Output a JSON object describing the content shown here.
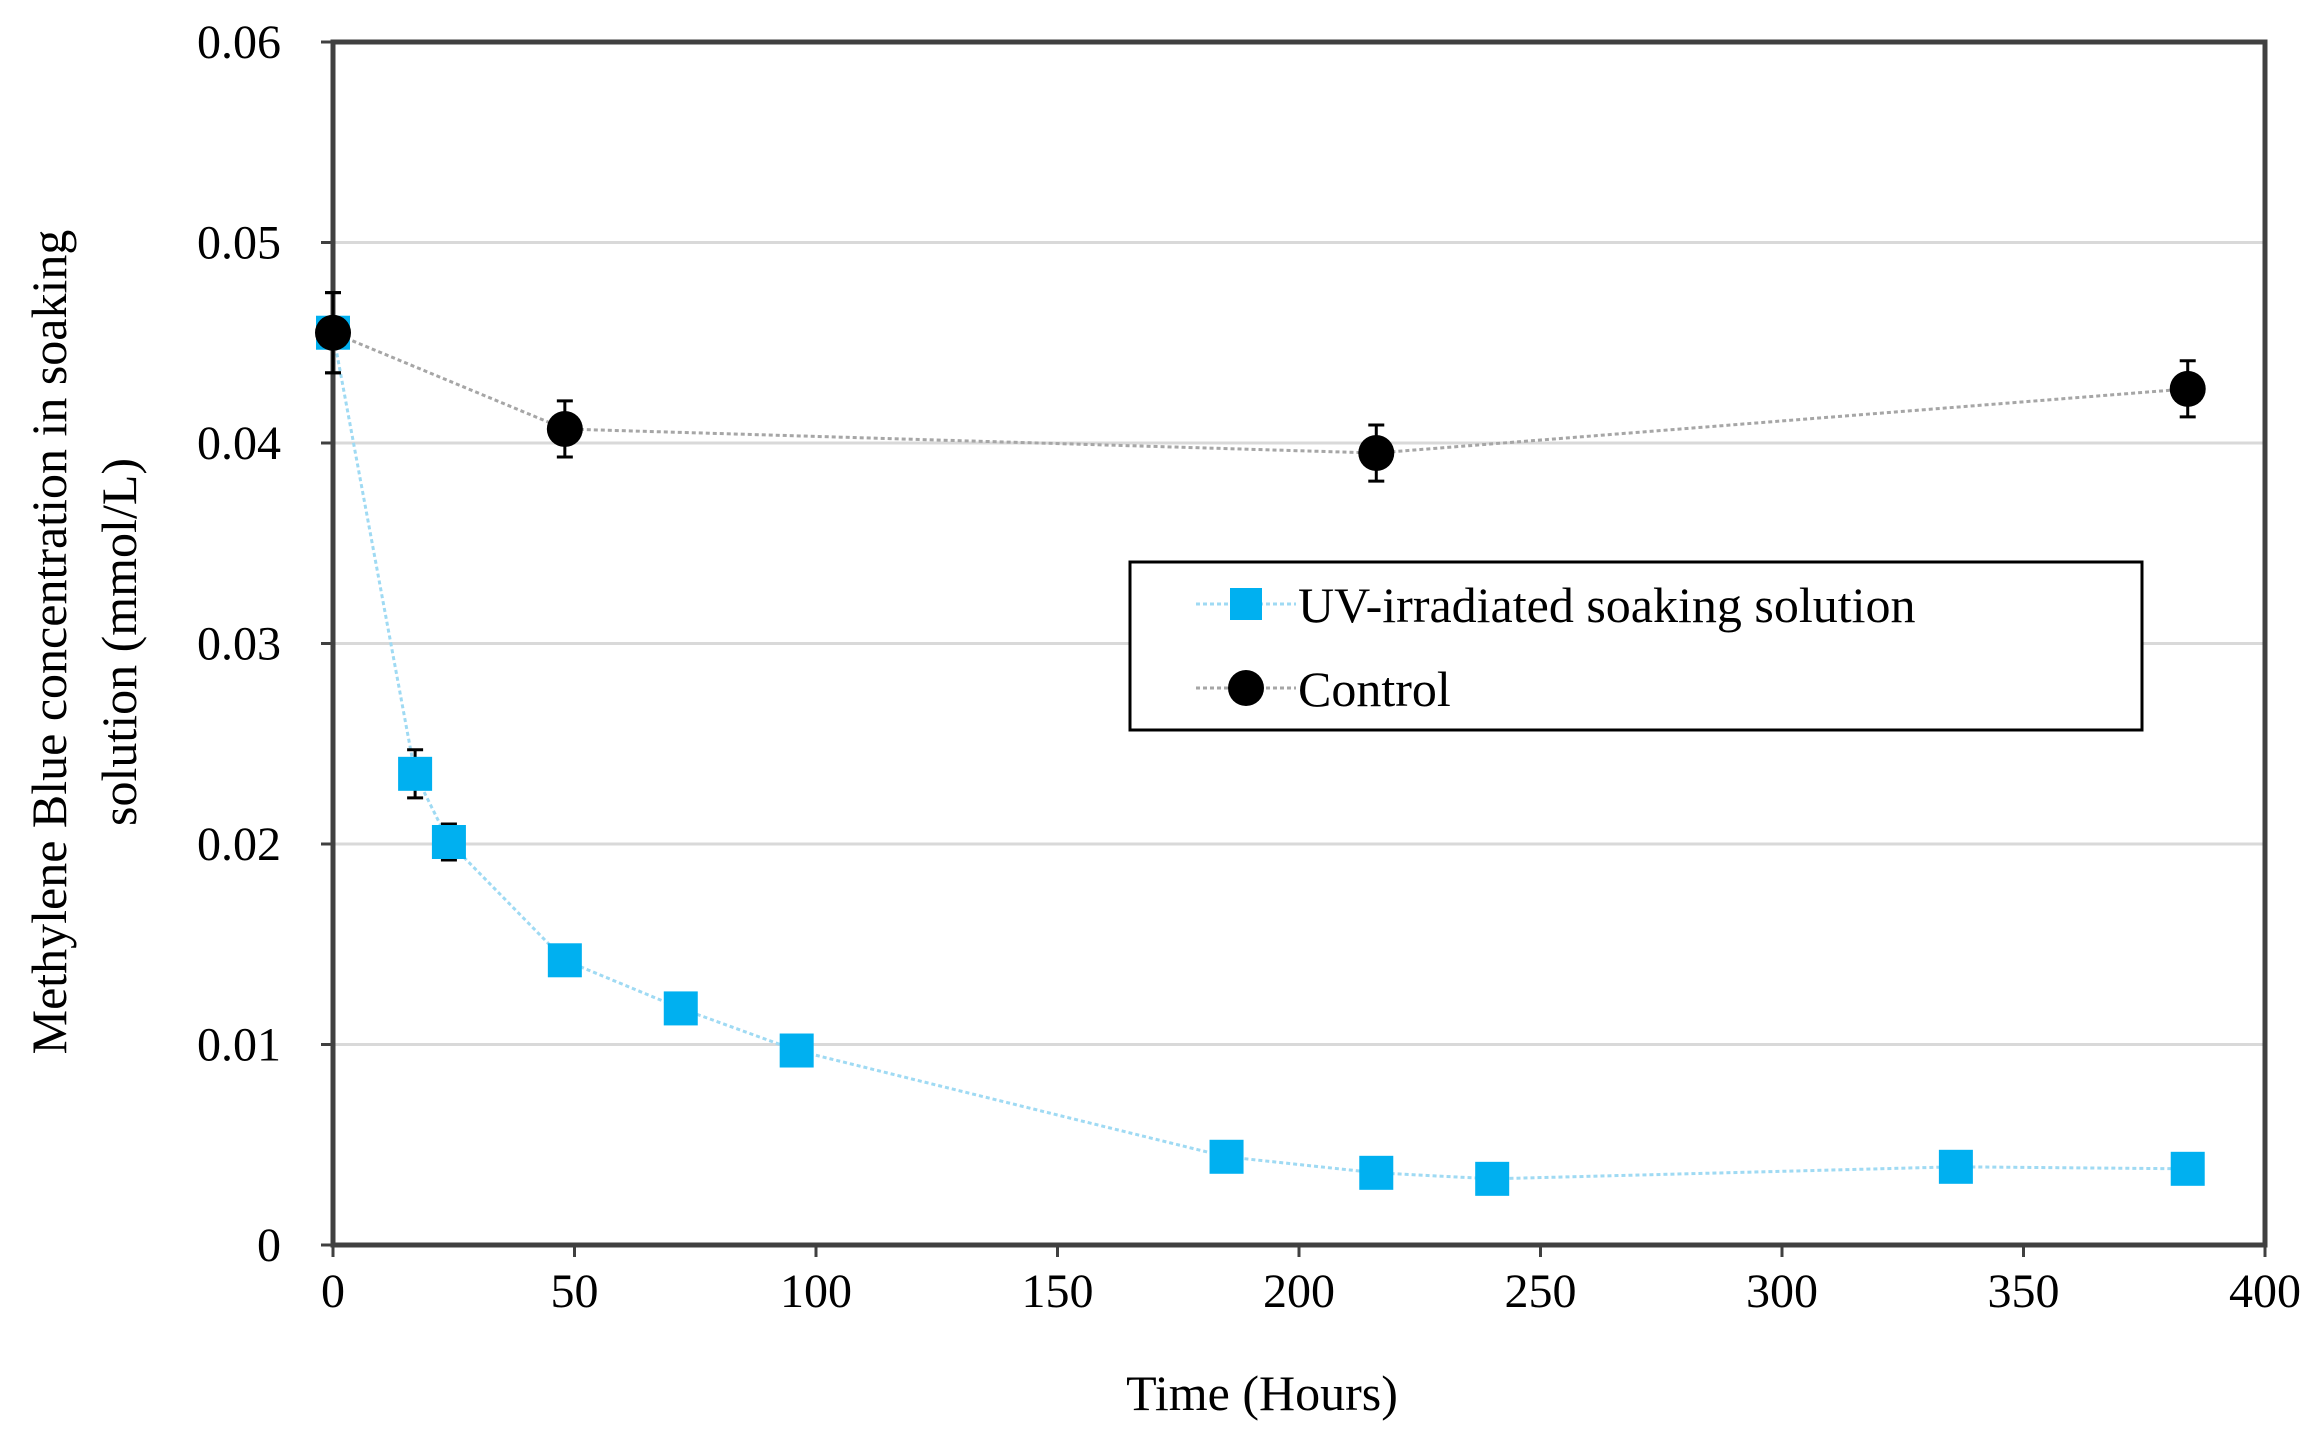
{
  "chart_data": {
    "type": "scatter",
    "title": "",
    "xlabel": "Time (Hours)",
    "ylabel_lines": [
      "Methylene Blue concentration in soaking",
      "solution (mmol/L)"
    ],
    "xlim": [
      0,
      400
    ],
    "ylim": [
      0,
      0.06
    ],
    "x_ticks": [
      "0",
      "50",
      "100",
      "150",
      "200",
      "250",
      "300",
      "350",
      "400"
    ],
    "y_ticks": [
      "0",
      "0.01",
      "0.02",
      "0.03",
      "0.04",
      "0.05",
      "0.06"
    ],
    "grid": "horizontal",
    "legend_position": "center-right",
    "series": [
      {
        "name": "UV-irradiated soaking solution",
        "marker": "square",
        "color": "#00b0f0",
        "line_color": "#9fdaf3",
        "x": [
          0,
          17,
          24,
          48,
          72,
          96,
          185,
          216,
          240,
          336,
          384
        ],
        "y": [
          0.0455,
          0.0235,
          0.0201,
          0.0142,
          0.0118,
          0.0097,
          0.0044,
          0.0036,
          0.0033,
          0.0039,
          0.0038
        ],
        "err": [
          0.002,
          0.0012,
          0.0009,
          0.0,
          0.0,
          0.0,
          0.0,
          0.0,
          0.0,
          0.0,
          0.0
        ]
      },
      {
        "name": "Control",
        "marker": "circle",
        "color": "#000000",
        "line_color": "#a6a6a6",
        "x": [
          0,
          48,
          216,
          384
        ],
        "y": [
          0.0455,
          0.0407,
          0.0395,
          0.0427
        ],
        "err": [
          0.002,
          0.0014,
          0.0014,
          0.0014
        ]
      }
    ]
  }
}
